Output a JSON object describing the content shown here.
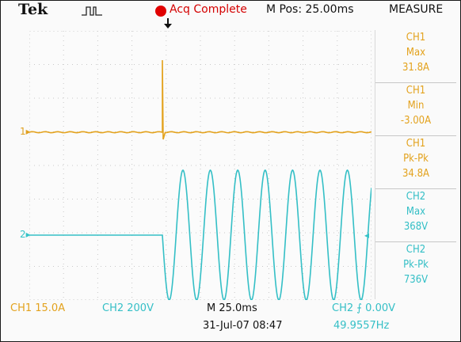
{
  "header": {
    "brand": "Tek",
    "acq_status": "Acq Complete",
    "m_pos": "M Pos: 25.00ms",
    "measure_title": "MEASURE"
  },
  "screen": {
    "ch1_marker": "1",
    "ch2_marker": "2",
    "ch1_color": "#e3a21d",
    "ch2_color": "#34bfc6",
    "ch1_waveform": {
      "description_values": [
        {
          "time_ms": 0,
          "current_a": 0
        },
        {
          "time_ms": 100,
          "current_a": 31.8
        },
        {
          "time_ms": 101,
          "current_a": -3.0
        },
        {
          "time_ms": 250,
          "current_a": 0
        }
      ]
    },
    "ch2_waveform": {
      "frequency_hz": 49.9557,
      "amplitude_v": 368
    }
  },
  "measure": {
    "items": [
      {
        "ch": "CH1",
        "label": "Max",
        "value": "31.8A"
      },
      {
        "ch": "CH1",
        "label": "Min",
        "value": "-3.00A"
      },
      {
        "ch": "CH1",
        "label": "Pk-Pk",
        "value": "34.8A"
      },
      {
        "ch": "CH2",
        "label": "Max",
        "value": "368V"
      },
      {
        "ch": "CH2",
        "label": "Pk-Pk",
        "value": "736V"
      }
    ]
  },
  "footer": {
    "ch1_scale": "CH1  15.0A",
    "ch2_scale": "CH2  200V",
    "timebase": "M 25.0ms",
    "trigger": "CH2 ⨍ 0.00V",
    "datetime": "31-Jul-07 08:47",
    "frequency": "49.9557Hz"
  }
}
